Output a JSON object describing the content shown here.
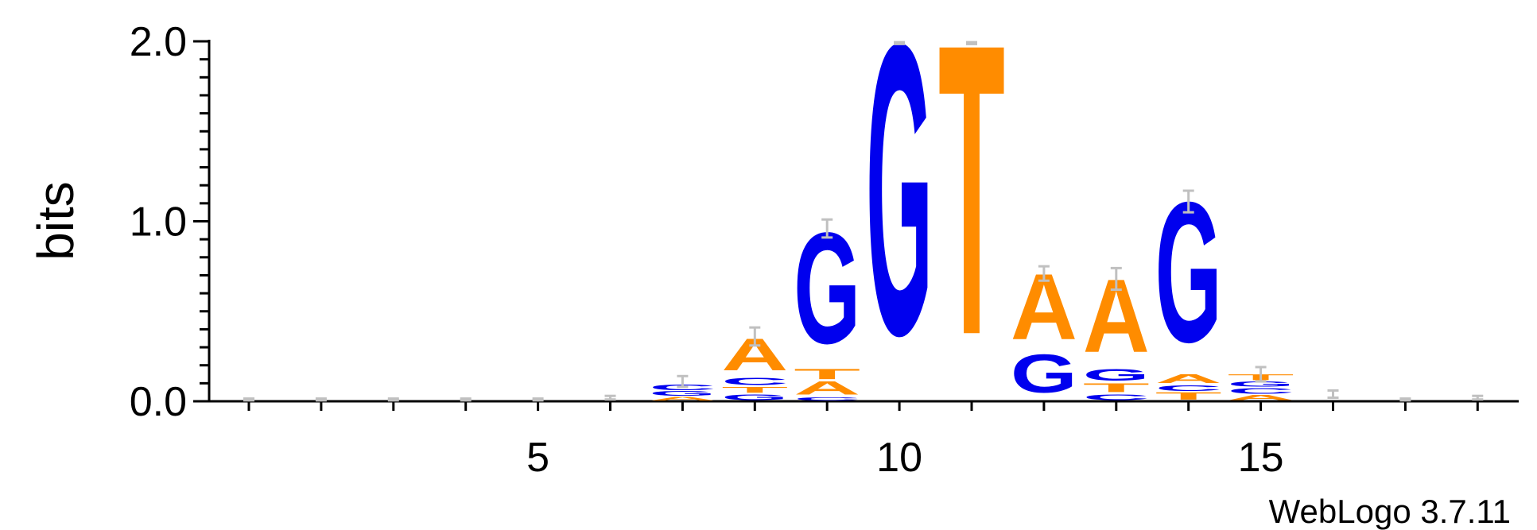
{
  "chart_data": {
    "type": "sequence-logo",
    "ylabel": "bits",
    "ylim": [
      0,
      2
    ],
    "y_ticks": [
      "0.0",
      "1.0",
      "2.0"
    ],
    "y_tick_values": [
      0,
      1,
      2
    ],
    "x_ticks": [
      "5",
      "10",
      "15"
    ],
    "x_tick_values": [
      5,
      10,
      15
    ],
    "positions": [
      1,
      2,
      3,
      4,
      5,
      6,
      7,
      8,
      9,
      10,
      11,
      12,
      13,
      14,
      15,
      16,
      17,
      18
    ],
    "colors": {
      "A": "#ff8c00",
      "T": "#ff8c00",
      "G": "#0000ee",
      "C": "#0000ee",
      "error_bar": "#c0c0c0"
    },
    "stacks": [
      {
        "position": 1,
        "letters": [],
        "total": 0.01,
        "error": 0.005
      },
      {
        "position": 2,
        "letters": [],
        "total": 0.01,
        "error": 0.005
      },
      {
        "position": 3,
        "letters": [],
        "total": 0.01,
        "error": 0.005
      },
      {
        "position": 4,
        "letters": [],
        "total": 0.01,
        "error": 0.005
      },
      {
        "position": 5,
        "letters": [],
        "total": 0.01,
        "error": 0.005
      },
      {
        "position": 6,
        "letters": [],
        "total": 0.02,
        "error": 0.01
      },
      {
        "position": 7,
        "letters": [
          {
            "base": "A",
            "height": 0.025
          },
          {
            "base": "G",
            "height": 0.03
          },
          {
            "base": "C",
            "height": 0.04
          }
        ],
        "total": 0.11,
        "error": 0.03
      },
      {
        "position": 8,
        "letters": [
          {
            "base": "G",
            "height": 0.04
          },
          {
            "base": "T",
            "height": 0.04
          },
          {
            "base": "C",
            "height": 0.05
          },
          {
            "base": "A",
            "height": 0.22
          }
        ],
        "total": 0.36,
        "error": 0.05
      },
      {
        "position": 9,
        "letters": [
          {
            "base": "C",
            "height": 0.02
          },
          {
            "base": "A",
            "height": 0.09
          },
          {
            "base": "T",
            "height": 0.07
          },
          {
            "base": "G",
            "height": 0.76
          }
        ],
        "total": 0.96,
        "error": 0.05
      },
      {
        "position": 10,
        "letters": [
          {
            "base": "G",
            "height": 1.99
          }
        ],
        "total": 1.99,
        "error": 0.005
      },
      {
        "position": 11,
        "letters": [
          {
            "base": "T",
            "height": 1.99
          }
        ],
        "total": 1.99,
        "error": 0.005
      },
      {
        "position": 12,
        "letters": [
          {
            "base": "G",
            "height": 0.26
          },
          {
            "base": "A",
            "height": 0.45
          }
        ],
        "total": 0.71,
        "error": 0.04
      },
      {
        "position": 13,
        "letters": [
          {
            "base": "C",
            "height": 0.04
          },
          {
            "base": "T",
            "height": 0.06
          },
          {
            "base": "G",
            "height": 0.08
          },
          {
            "base": "A",
            "height": 0.5
          }
        ],
        "total": 0.68,
        "error": 0.06
      },
      {
        "position": 14,
        "letters": [
          {
            "base": "T",
            "height": 0.05
          },
          {
            "base": "C",
            "height": 0.04
          },
          {
            "base": "A",
            "height": 0.06
          },
          {
            "base": "G",
            "height": 0.96
          }
        ],
        "total": 1.11,
        "error": 0.06
      },
      {
        "position": 15,
        "letters": [
          {
            "base": "A",
            "height": 0.035
          },
          {
            "base": "C",
            "height": 0.04
          },
          {
            "base": "G",
            "height": 0.035
          },
          {
            "base": "T",
            "height": 0.04
          }
        ],
        "total": 0.15,
        "error": 0.04
      },
      {
        "position": 16,
        "letters": [],
        "total": 0.04,
        "error": 0.02
      },
      {
        "position": 17,
        "letters": [],
        "total": 0.01,
        "error": 0.005
      },
      {
        "position": 18,
        "letters": [],
        "total": 0.02,
        "error": 0.01
      }
    ]
  },
  "credit": "WebLogo 3.7.11"
}
